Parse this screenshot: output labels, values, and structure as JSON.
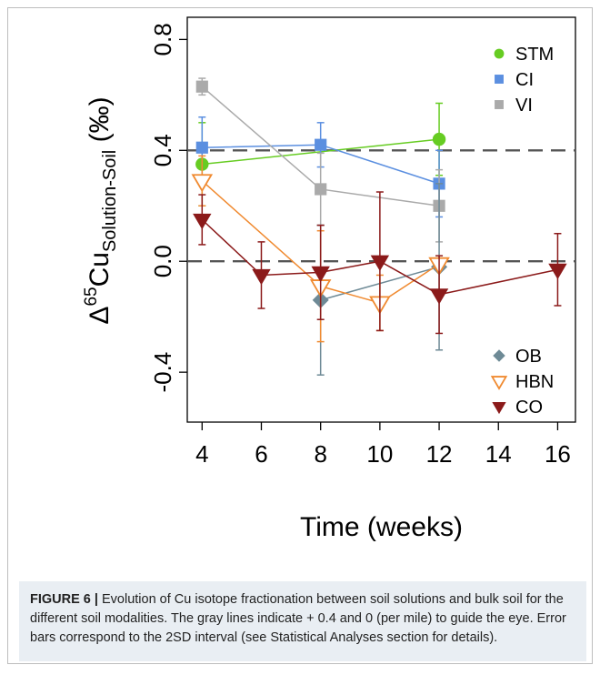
{
  "chart_data": {
    "type": "line",
    "xlabel": "Time (weeks)",
    "ylabel_main": "Δ",
    "ylabel_sup": "65",
    "ylabel_base": "Cu",
    "ylabel_sub": "Solution-Soil",
    "ylabel_unit": " (‰)",
    "xlim": [
      3.5,
      16.6
    ],
    "ylim": [
      -0.58,
      0.88
    ],
    "x_ticks": [
      4,
      6,
      8,
      10,
      12,
      14,
      16
    ],
    "x_tick_labels": [
      "4",
      "6",
      "8",
      "10",
      "12",
      "14",
      "16"
    ],
    "y_ticks": [
      -0.4,
      0.0,
      0.4,
      0.8
    ],
    "y_tick_labels": [
      "-0.4",
      "0.0",
      "0.4",
      "0.8"
    ],
    "reference_lines": [
      0.4,
      0.0
    ],
    "legend_top": [
      "STM",
      "CI",
      "VI"
    ],
    "legend_bottom": [
      "OB",
      "HBN",
      "CO"
    ],
    "series": [
      {
        "name": "STM",
        "color": "#66cc22",
        "marker": "circle",
        "x": [
          4,
          12
        ],
        "y": [
          0.35,
          0.44
        ],
        "err": [
          0.15,
          0.13
        ]
      },
      {
        "name": "CI",
        "color": "#5b8fe0",
        "marker": "square",
        "x": [
          4,
          8,
          12
        ],
        "y": [
          0.41,
          0.42,
          0.28
        ],
        "err": [
          0.11,
          0.08,
          0.12
        ]
      },
      {
        "name": "VI",
        "color": "#aaaaaa",
        "marker": "square",
        "x": [
          4,
          8,
          12
        ],
        "y": [
          0.63,
          0.26,
          0.2
        ],
        "err": [
          0.03,
          0.13,
          0.13
        ]
      },
      {
        "name": "OB",
        "color": "#6e8a96",
        "marker": "diamond",
        "x": [
          8,
          12
        ],
        "y": [
          -0.14,
          -0.02
        ],
        "err": [
          0.27,
          0.3
        ]
      },
      {
        "name": "HBN",
        "color": "#f08a30",
        "marker": "triangle-down-open",
        "x": [
          4,
          8,
          10,
          12
        ],
        "y": [
          0.29,
          -0.09,
          -0.15,
          -0.01
        ],
        "err": [
          0.09,
          0.2,
          0.1,
          0.02
        ]
      },
      {
        "name": "CO",
        "color": "#8b1a1a",
        "marker": "triangle-down",
        "x": [
          4,
          6,
          8,
          10,
          12,
          16
        ],
        "y": [
          0.15,
          -0.05,
          -0.04,
          0.0,
          -0.12,
          -0.03
        ],
        "err": [
          0.09,
          0.12,
          0.17,
          0.25,
          0.14,
          0.13
        ]
      }
    ]
  },
  "caption": {
    "label": "FIGURE 6 |",
    "text": " Evolution of Cu isotope fractionation between soil solutions and bulk soil for the different soil modalities. The gray lines indicate + 0.4 and 0 (per mile) to guide the eye. Error bars correspond to the 2SD interval (see Statistical Analyses section for details)."
  }
}
